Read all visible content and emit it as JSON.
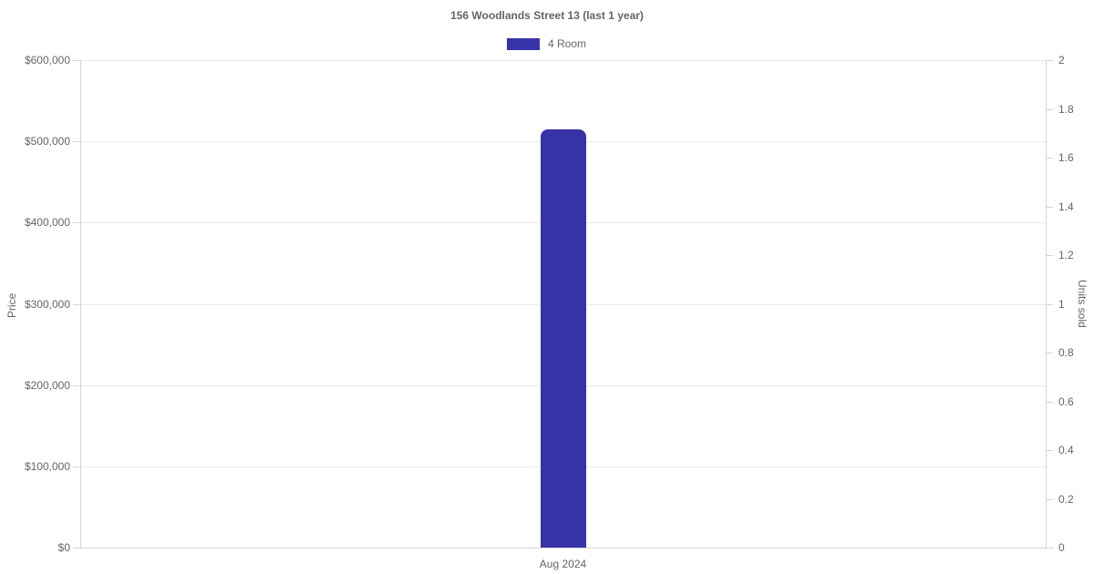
{
  "chart_data": {
    "type": "bar",
    "title": "156 Woodlands Street 13 (last 1 year)",
    "legend_position": "top",
    "legend": [
      {
        "label": "4 Room",
        "color": "#3733a6"
      }
    ],
    "categories": [
      "Aug 2024"
    ],
    "series": [
      {
        "name": "4 Room",
        "color": "#3733a6",
        "value_axis": "left",
        "values": [
          515000
        ]
      }
    ],
    "axes": {
      "left": {
        "label": "Price",
        "min": 0,
        "max": 600000,
        "grid": true,
        "ticks": [
          {
            "value": 0,
            "label": "$0"
          },
          {
            "value": 100000,
            "label": "$100,000"
          },
          {
            "value": 200000,
            "label": "$200,000"
          },
          {
            "value": 300000,
            "label": "$300,000"
          },
          {
            "value": 400000,
            "label": "$400,000"
          },
          {
            "value": 500000,
            "label": "$500,000"
          },
          {
            "value": 600000,
            "label": "$600,000"
          }
        ]
      },
      "right": {
        "label": "Units sold",
        "min": 0,
        "max": 2,
        "grid": false,
        "ticks": [
          {
            "value": 0,
            "label": "0"
          },
          {
            "value": 0.2,
            "label": "0.2"
          },
          {
            "value": 0.4,
            "label": "0.4"
          },
          {
            "value": 0.6,
            "label": "0.6"
          },
          {
            "value": 0.8,
            "label": "0.8"
          },
          {
            "value": 1,
            "label": "1"
          },
          {
            "value": 1.2,
            "label": "1.2"
          },
          {
            "value": 1.4,
            "label": "1.4"
          },
          {
            "value": 1.6,
            "label": "1.6"
          },
          {
            "value": 1.8,
            "label": "1.8"
          },
          {
            "value": 2,
            "label": "2"
          }
        ]
      }
    }
  },
  "colors": {
    "bar": "#3733a6",
    "text": "#666666",
    "grid": "#e8e8e8",
    "axis_border": "#d4d4d4",
    "background": "#ffffff"
  }
}
